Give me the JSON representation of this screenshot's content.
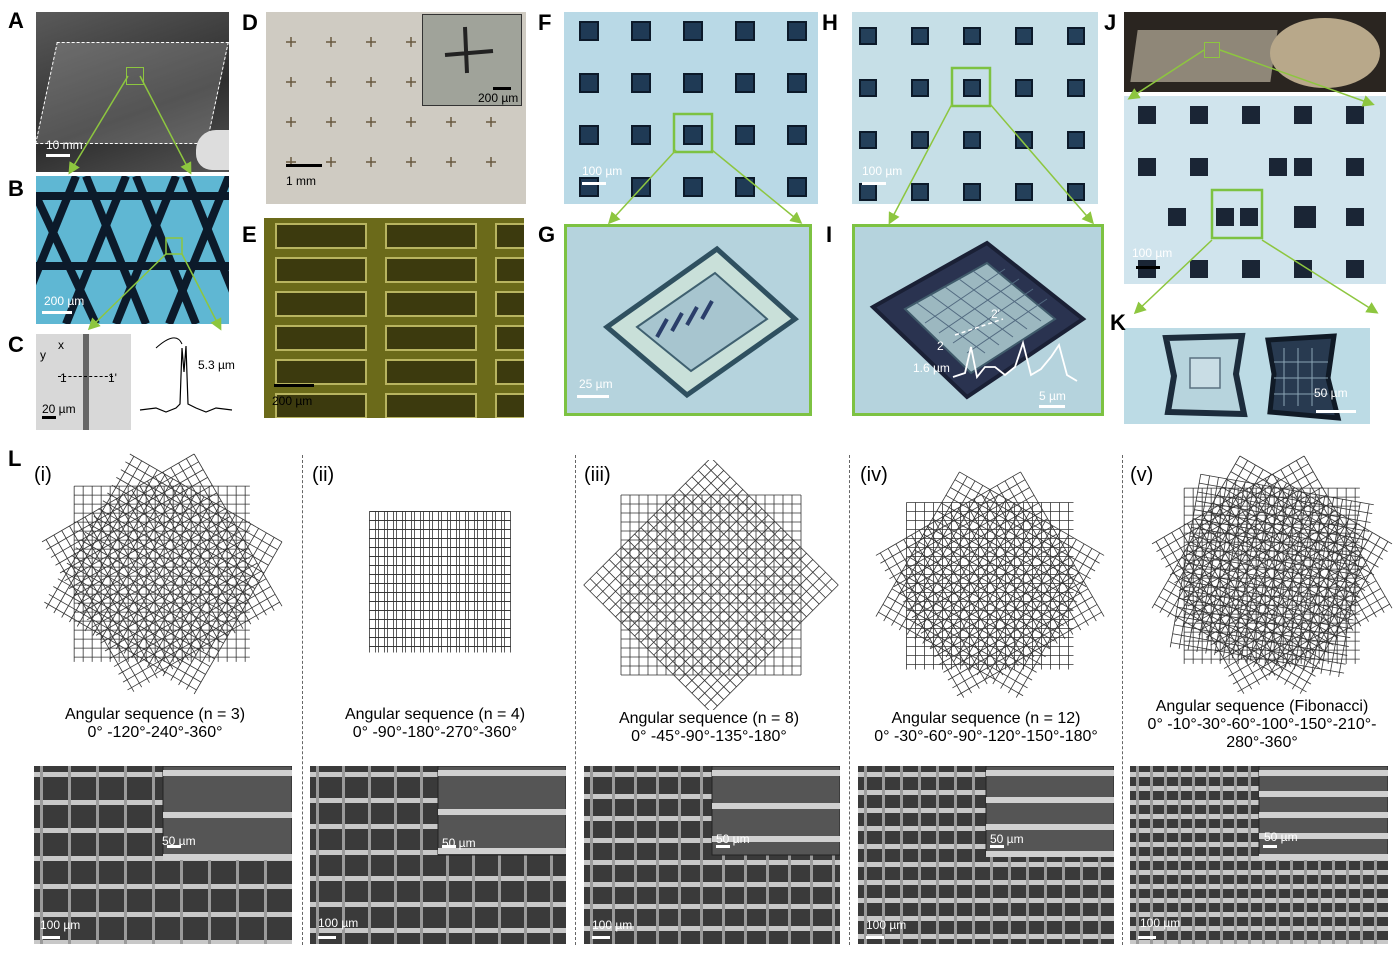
{
  "panel_labels": {
    "A": "A",
    "B": "B",
    "C": "C",
    "D": "D",
    "E": "E",
    "F": "F",
    "G": "G",
    "H": "H",
    "I": "I",
    "J": "J",
    "K": "K",
    "L": "L"
  },
  "scale_bars": {
    "A": "10 mm",
    "B": "200 µm",
    "C": "20 µm",
    "D": "1 mm",
    "D_inset": "200 µm",
    "E": "200 µm",
    "F": "100 µm",
    "G": "25 µm",
    "H": "100 µm",
    "I": "5 µm",
    "J": "100 µm",
    "K": "50 µm",
    "Li": "100 µm",
    "Li_inset": "50 µm",
    "Lii": "100 µm",
    "Lii_inset": "50 µm",
    "Liii": "100 µm",
    "Liii_inset": "50 µm",
    "Liv": "100 µm",
    "Liv_inset": "50 µm",
    "Lv": "100 µm",
    "Lv_inset": "50 µm"
  },
  "panel_C": {
    "axis_x": "x",
    "axis_y": "y",
    "mark_1": "1",
    "mark_1p": "1'",
    "width": "5.3 µm"
  },
  "panel_I": {
    "mark_2": "2",
    "mark_2p": "2'",
    "width": "1.6 µm"
  },
  "panel_L": [
    {
      "roman": "(i)",
      "caption1": "Angular sequence (n = 3)",
      "caption2": "0° -120°-240°-360°"
    },
    {
      "roman": "(ii)",
      "caption1": "Angular sequence (n = 4)",
      "caption2": "0° -90°-180°-270°-360°"
    },
    {
      "roman": "(iii)",
      "caption1": "Angular sequence (n = 8)",
      "caption2": "0° -45°-90°-135°-180°"
    },
    {
      "roman": "(iv)",
      "caption1": "Angular sequence (n = 12)",
      "caption2": "0° -30°-60°-90°-120°-150°-180°"
    },
    {
      "roman": "(v)",
      "caption1": "Angular sequence (Fibonacci)",
      "caption2": "0° -10°-30°-60°-100°-150°-210°-",
      "caption3": "280°-360°"
    }
  ],
  "colors": {
    "arrow": "#8dc63f",
    "highlight": "#7dc242",
    "mesh": "#333333"
  }
}
